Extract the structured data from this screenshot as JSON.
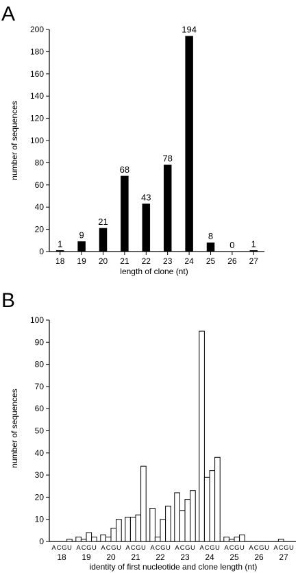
{
  "colors": {
    "axis": "#000000",
    "bar_fill_a": "#000000",
    "bar_fill_b": "#ffffff",
    "bar_stroke": "#000000"
  },
  "panels": {
    "a": {
      "label": "A"
    },
    "b": {
      "label": "B"
    }
  },
  "chart_data": [
    {
      "type": "bar",
      "panel": "A",
      "title": "",
      "xlabel": "length of clone (nt)",
      "ylabel": "number of sequences",
      "ylim": [
        0,
        200
      ],
      "yticks": [
        0,
        20,
        40,
        60,
        80,
        100,
        120,
        140,
        160,
        180,
        200
      ],
      "categories": [
        "18",
        "19",
        "20",
        "21",
        "22",
        "23",
        "24",
        "25",
        "26",
        "27"
      ],
      "values": [
        1,
        9,
        21,
        68,
        43,
        78,
        194,
        8,
        0,
        1
      ],
      "data_labels": [
        "1",
        "9",
        "21",
        "68",
        "43",
        "78",
        "194",
        "8",
        "0",
        "1"
      ],
      "bar_fill": "black",
      "grid": false
    },
    {
      "type": "bar",
      "panel": "B",
      "title": "",
      "xlabel": "identity of first nucleotide and clone length (nt)",
      "ylabel": "number of sequences",
      "ylim": [
        0,
        100
      ],
      "yticks": [
        0,
        10,
        20,
        30,
        40,
        50,
        60,
        70,
        80,
        90,
        100
      ],
      "categories": [
        "18",
        "19",
        "20",
        "21",
        "22",
        "23",
        "24",
        "25",
        "26",
        "27"
      ],
      "subcategories": [
        "A",
        "C",
        "G",
        "U"
      ],
      "values": [
        [
          0,
          0,
          0,
          1
        ],
        [
          2,
          1,
          4,
          2
        ],
        [
          3,
          2,
          6,
          10
        ],
        [
          11,
          11,
          12,
          34
        ],
        [
          15,
          2,
          10,
          16
        ],
        [
          22,
          14,
          19,
          23
        ],
        [
          95,
          29,
          32,
          38
        ],
        [
          2,
          1,
          2,
          3
        ],
        [
          0,
          0,
          0,
          0
        ],
        [
          0,
          1,
          0,
          0
        ]
      ],
      "bar_fill": "white",
      "grid": false
    }
  ]
}
